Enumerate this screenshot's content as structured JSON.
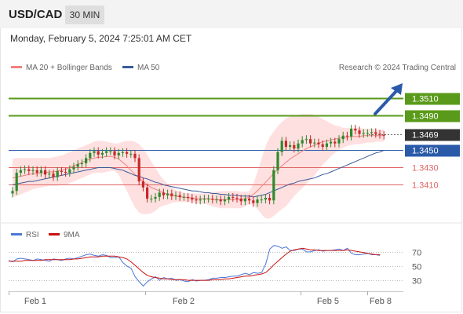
{
  "header": {
    "symbol": "USD/CAD",
    "timeframe": "30 MIN",
    "datetime": "Monday, February 5, 2024 7:25:01 AM CET"
  },
  "legend": {
    "ma20_label": "MA 20 + Bollinger Bands",
    "ma50_label": "MA 50",
    "credit": "Research © 2024 Trading Central",
    "rsi_label": "RSI",
    "rsi_ma_label": "9MA"
  },
  "colors": {
    "up": "#2d8a2d",
    "down": "#c62828",
    "bollinger_fill": "#ffdada",
    "ma20": "#f08080",
    "ma50": "#3a5a9a",
    "resistance": "#5a9a1a",
    "pivot": "#2a5aa8",
    "support": "#e06666",
    "arrow": "#2a5aa8",
    "rsi": "#4a78d8",
    "rsi_ma": "#cc1111",
    "current_box": "#333333"
  },
  "chart_data": {
    "type": "candlestick",
    "price_axis": {
      "ylim": [
        1.3375,
        1.3535
      ]
    },
    "levels": [
      {
        "label": "1.3510",
        "value": 1.351,
        "kind": "resistance"
      },
      {
        "label": "1.3490",
        "value": 1.349,
        "kind": "resistance"
      },
      {
        "label": "1.3469",
        "value": 1.3469,
        "kind": "current"
      },
      {
        "label": "1.3450",
        "value": 1.345,
        "kind": "pivot"
      },
      {
        "label": "1.3430",
        "value": 1.343,
        "kind": "support"
      },
      {
        "label": "1.3410",
        "value": 1.341,
        "kind": "support"
      }
    ],
    "x_ticks": [
      "Feb 1",
      "Feb 2",
      "Feb 5",
      "Feb 8"
    ],
    "close": [
      1.3403,
      1.3424,
      1.3427,
      1.3428,
      1.3426,
      1.3427,
      1.3424,
      1.3427,
      1.3422,
      1.3423,
      1.3419,
      1.3426,
      1.3425,
      1.3424,
      1.3428,
      1.3431,
      1.3434,
      1.3435,
      1.3441,
      1.3447,
      1.3449,
      1.3445,
      1.3447,
      1.3449,
      1.3449,
      1.3444,
      1.3447,
      1.3448,
      1.3446,
      1.3446,
      1.3441,
      1.3414,
      1.3407,
      1.3394,
      1.3394,
      1.3396,
      1.3401,
      1.3398,
      1.34,
      1.3397,
      1.3398,
      1.3396,
      1.3396,
      1.3395,
      1.3393,
      1.3392,
      1.3393,
      1.3394,
      1.3394,
      1.3393,
      1.3393,
      1.3391,
      1.3393,
      1.3396,
      1.3395,
      1.3394,
      1.3391,
      1.3394,
      1.3392,
      1.3389,
      1.3393,
      1.3393,
      1.3395,
      1.3392,
      1.3427,
      1.3448,
      1.3461,
      1.3454,
      1.3456,
      1.3452,
      1.3458,
      1.3462,
      1.3463,
      1.3458,
      1.3459,
      1.3457,
      1.3454,
      1.3458,
      1.346,
      1.3458,
      1.3463,
      1.3467,
      1.3466,
      1.3475,
      1.3473,
      1.3469,
      1.347,
      1.347,
      1.3471,
      1.3469,
      1.3468,
      1.3467
    ],
    "ma20": [
      1.3418,
      1.3419,
      1.342,
      1.3421,
      1.3422,
      1.3423,
      1.3423,
      1.3424,
      1.3424,
      1.3425,
      1.3425,
      1.3426,
      1.3427,
      1.3428,
      1.343,
      1.3432,
      1.3434,
      1.3436,
      1.3438,
      1.344,
      1.3441,
      1.3442,
      1.3442,
      1.3443,
      1.3443,
      1.3442,
      1.344,
      1.3436,
      1.3432,
      1.3427,
      1.3422,
      1.3418,
      1.3414,
      1.341,
      1.3407,
      1.3405,
      1.3403,
      1.3401,
      1.3399,
      1.3398,
      1.3397,
      1.3396,
      1.3396,
      1.3395,
      1.3395,
      1.3394,
      1.3394,
      1.3394,
      1.3394,
      1.3393,
      1.3393,
      1.3393,
      1.3393,
      1.3393,
      1.3393,
      1.3393,
      1.3393,
      1.3394,
      1.3396,
      1.3399,
      1.3403,
      1.3408,
      1.3413,
      1.3418,
      1.3423,
      1.3428,
      1.3432,
      1.3436,
      1.344,
      1.3443,
      1.3446,
      1.3449,
      1.3452,
      1.3454,
      1.3456,
      1.3458,
      1.346,
      1.3461,
      1.3462,
      1.3463,
      1.3464,
      1.3465,
      1.3465,
      1.3466,
      1.3466,
      1.3466,
      1.3467,
      1.3467,
      1.3467,
      1.3467,
      1.3467,
      1.3467
    ],
    "bb_upper": [
      1.344,
      1.3441,
      1.3441,
      1.3441,
      1.3441,
      1.3441,
      1.3441,
      1.3441,
      1.3441,
      1.3441,
      1.3442,
      1.3443,
      1.3444,
      1.3446,
      1.3448,
      1.345,
      1.3452,
      1.3454,
      1.3456,
      1.3458,
      1.346,
      1.3461,
      1.3461,
      1.346,
      1.3459,
      1.3458,
      1.3458,
      1.346,
      1.3461,
      1.3461,
      1.346,
      1.3457,
      1.3452,
      1.3445,
      1.3437,
      1.343,
      1.3422,
      1.3416,
      1.3411,
      1.3407,
      1.3404,
      1.3402,
      1.3401,
      1.34,
      1.34,
      1.34,
      1.34,
      1.34,
      1.3401,
      1.3402,
      1.3402,
      1.3403,
      1.3403,
      1.3403,
      1.3403,
      1.3403,
      1.3402,
      1.3402,
      1.3403,
      1.3411,
      1.3425,
      1.344,
      1.3455,
      1.3465,
      1.3472,
      1.3478,
      1.3483,
      1.3487,
      1.3489,
      1.349,
      1.3491,
      1.3492,
      1.3492,
      1.3492,
      1.3491,
      1.3489,
      1.3486,
      1.3484,
      1.3481,
      1.3479,
      1.3478,
      1.3476,
      1.3476,
      1.3476,
      1.3476,
      1.3476,
      1.3475,
      1.3475,
      1.3475,
      1.3474,
      1.3474,
      1.3474
    ],
    "bb_lower": [
      1.3396,
      1.3397,
      1.3399,
      1.3401,
      1.3403,
      1.3405,
      1.3406,
      1.3407,
      1.3408,
      1.3409,
      1.3409,
      1.3409,
      1.341,
      1.341,
      1.3412,
      1.3414,
      1.3416,
      1.3418,
      1.342,
      1.3422,
      1.3424,
      1.3424,
      1.3424,
      1.3425,
      1.3426,
      1.3426,
      1.3422,
      1.3412,
      1.3403,
      1.3393,
      1.3384,
      1.3378,
      1.3376,
      1.3376,
      1.3377,
      1.338,
      1.3384,
      1.3386,
      1.3387,
      1.3389,
      1.339,
      1.339,
      1.339,
      1.339,
      1.339,
      1.3389,
      1.3388,
      1.3388,
      1.3387,
      1.3385,
      1.3384,
      1.3383,
      1.3383,
      1.3383,
      1.3383,
      1.3383,
      1.3383,
      1.3385,
      1.3388,
      1.3387,
      1.3382,
      1.3376,
      1.3371,
      1.3371,
      1.3374,
      1.3378,
      1.3382,
      1.3385,
      1.3391,
      1.3397,
      1.3402,
      1.3406,
      1.3411,
      1.3416,
      1.3421,
      1.3427,
      1.3433,
      1.3438,
      1.3443,
      1.3447,
      1.345,
      1.3453,
      1.3455,
      1.3456,
      1.3457,
      1.3457,
      1.3458,
      1.3459,
      1.3459,
      1.346,
      1.346,
      1.346
    ],
    "ma50": [
      1.341,
      1.3411,
      1.3412,
      1.3413,
      1.3414,
      1.3414,
      1.3415,
      1.3416,
      1.3417,
      1.3418,
      1.3419,
      1.342,
      1.3421,
      1.3422,
      1.3423,
      1.3424,
      1.3425,
      1.3426,
      1.3427,
      1.3428,
      1.3429,
      1.343,
      1.343,
      1.343,
      1.343,
      1.3429,
      1.3428,
      1.3427,
      1.3425,
      1.3423,
      1.3421,
      1.342,
      1.3418,
      1.3417,
      1.3415,
      1.3413,
      1.3412,
      1.341,
      1.3409,
      1.3408,
      1.3407,
      1.3406,
      1.3405,
      1.3404,
      1.3403,
      1.3403,
      1.3402,
      1.3401,
      1.3401,
      1.34,
      1.34,
      1.3399,
      1.3399,
      1.3398,
      1.3398,
      1.3398,
      1.3397,
      1.3397,
      1.3397,
      1.3396,
      1.3397,
      1.3398,
      1.3399,
      1.3401,
      1.3403,
      1.3405,
      1.3407,
      1.3409,
      1.3411,
      1.3412,
      1.3414,
      1.3415,
      1.3416,
      1.3417,
      1.3418,
      1.342,
      1.3422,
      1.3423,
      1.3425,
      1.3427,
      1.3429,
      1.3431,
      1.3433,
      1.3435,
      1.3437,
      1.3439,
      1.3441,
      1.3443,
      1.3445,
      1.3447,
      1.3448,
      1.345
    ],
    "rsi": {
      "yticks": [
        70,
        50,
        30
      ],
      "ylim": [
        18,
        82
      ],
      "rsi": [
        58,
        56,
        60,
        61,
        60,
        59,
        58,
        60,
        59,
        58,
        57,
        60,
        59,
        58,
        60,
        61,
        60,
        62,
        64,
        66,
        67,
        65,
        64,
        66,
        65,
        62,
        62,
        63,
        55,
        50,
        47,
        35,
        28,
        22,
        28,
        32,
        35,
        30,
        34,
        32,
        33,
        30,
        31,
        29,
        28,
        31,
        29,
        30,
        30,
        31,
        33,
        33,
        34,
        34,
        35,
        36,
        36,
        38,
        40,
        38,
        41,
        40,
        41,
        53,
        74,
        79,
        78,
        75,
        77,
        72,
        72,
        74,
        74,
        70,
        70,
        72,
        73,
        71,
        72,
        72,
        73,
        74,
        72,
        75,
        68,
        66,
        66,
        67,
        68,
        66,
        66,
        65
      ],
      "ma9": [
        57,
        57,
        57,
        57,
        58,
        58,
        58,
        58,
        58,
        59,
        59,
        59,
        59,
        59,
        59,
        59,
        60,
        60,
        61,
        62,
        63,
        63,
        63,
        64,
        64,
        64,
        64,
        63,
        62,
        60,
        56,
        51,
        46,
        41,
        37,
        35,
        34,
        33,
        32,
        32,
        31,
        31,
        31,
        31,
        30,
        30,
        30,
        30,
        30,
        30,
        31,
        31,
        31,
        32,
        32,
        33,
        34,
        35,
        36,
        36,
        37,
        38,
        39,
        41,
        46,
        52,
        57,
        62,
        67,
        71,
        73,
        74,
        75,
        74,
        73,
        73,
        72,
        72,
        72,
        72,
        72,
        72,
        72,
        73,
        72,
        71,
        70,
        69,
        68,
        67,
        66,
        66
      ]
    }
  }
}
